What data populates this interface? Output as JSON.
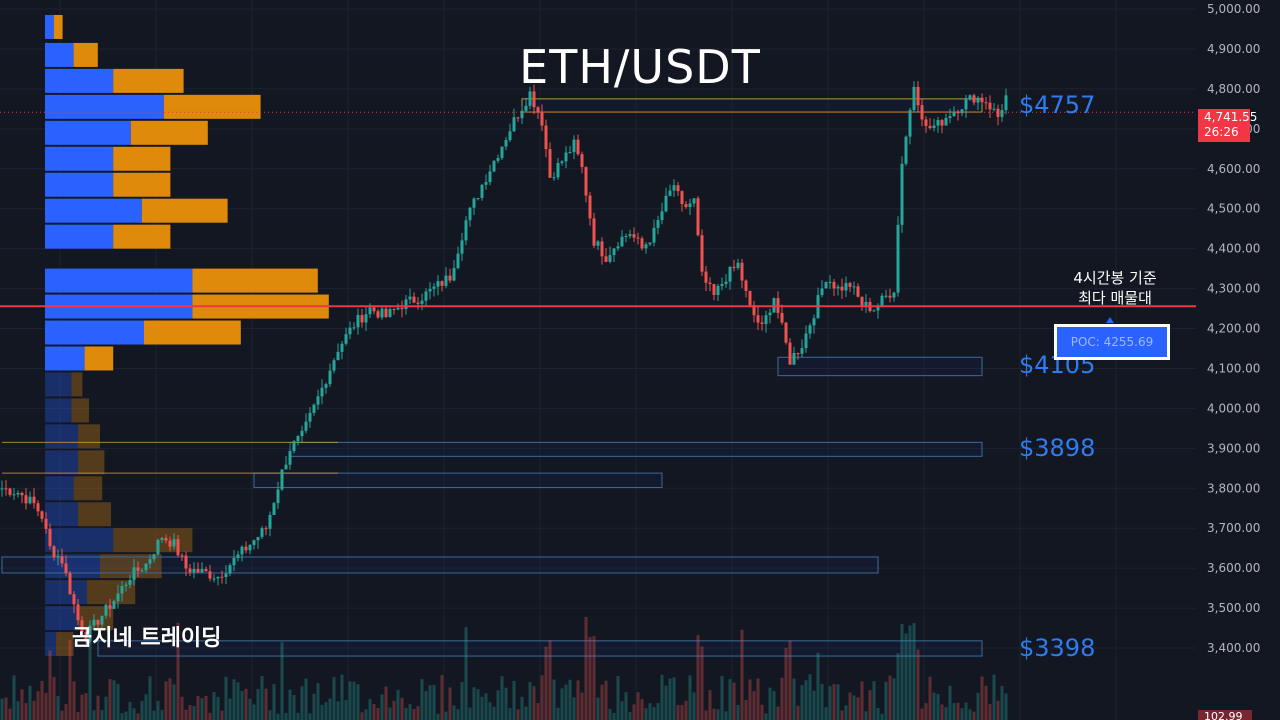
{
  "title": "ETH/USDT",
  "watermark": "곰지네 트레이딩",
  "colors": {
    "background": "#131722",
    "up": "#26a69a",
    "down": "#ef5350",
    "profile_blue": "#2962ff",
    "profile_orange": "#e08a0b",
    "poc_line": "#f23645",
    "level_label": "#2f7bf0"
  },
  "annotations": {
    "poc_caption_line1": "4시간봉 기준",
    "poc_caption_line2": "최다 매물대",
    "poc_label": "POC: 4255.69"
  },
  "price_tag": {
    "price": "4,741.55",
    "countdown": "26:26"
  },
  "volume_tag": "102.99 K",
  "chart_data": {
    "type": "candlestick",
    "title": "ETH/USDT",
    "y_axis": {
      "min": 3320,
      "max": 5000,
      "ticks": [
        5000,
        4900,
        4800,
        4700,
        4600,
        4500,
        4400,
        4300,
        4200,
        4100,
        4000,
        3900,
        3800,
        3700,
        3600,
        3500,
        3400
      ],
      "tick_labels": [
        "5,000.00",
        "4,900.00",
        "4,800.00",
        "4,700.00",
        "4,600.00",
        "4,500.00",
        "4,400.00",
        "4,300.00",
        "4,200.00",
        "4,100.00",
        "4,000.00",
        "3,900.00",
        "3,800.00",
        "3,700.00",
        "3,600.00",
        "3,500.00",
        "3,400.00"
      ],
      "side": "right"
    },
    "current_price": 4741.55,
    "poc": 4255.69,
    "key_levels": [
      {
        "label": "$4757",
        "price": 4757
      },
      {
        "label": "$4105",
        "price": 4105
      },
      {
        "label": "$3898",
        "price": 3898
      },
      {
        "label": "$3398",
        "price": 3398
      }
    ],
    "path": [
      [
        0,
        3800
      ],
      [
        4,
        3790
      ],
      [
        8,
        3760
      ],
      [
        10,
        3730
      ],
      [
        12,
        3650
      ],
      [
        15,
        3620
      ],
      [
        19,
        3470
      ],
      [
        21,
        3430
      ],
      [
        24,
        3470
      ],
      [
        28,
        3520
      ],
      [
        32,
        3580
      ],
      [
        36,
        3610
      ],
      [
        40,
        3680
      ],
      [
        43,
        3660
      ],
      [
        46,
        3600
      ],
      [
        50,
        3590
      ],
      [
        54,
        3580
      ],
      [
        58,
        3620
      ],
      [
        62,
        3660
      ],
      [
        66,
        3700
      ],
      [
        70,
        3840
      ],
      [
        72,
        3900
      ],
      [
        75,
        3930
      ],
      [
        80,
        4050
      ],
      [
        84,
        4150
      ],
      [
        88,
        4210
      ],
      [
        92,
        4250
      ],
      [
        96,
        4230
      ],
      [
        100,
        4260
      ],
      [
        105,
        4280
      ],
      [
        108,
        4300
      ],
      [
        112,
        4330
      ],
      [
        116,
        4470
      ],
      [
        120,
        4560
      ],
      [
        124,
        4640
      ],
      [
        128,
        4720
      ],
      [
        132,
        4790
      ],
      [
        135,
        4720
      ],
      [
        137,
        4580
      ],
      [
        140,
        4620
      ],
      [
        143,
        4660
      ],
      [
        145,
        4600
      ],
      [
        148,
        4420
      ],
      [
        151,
        4380
      ],
      [
        154,
        4420
      ],
      [
        157,
        4440
      ],
      [
        160,
        4400
      ],
      [
        163,
        4440
      ],
      [
        166,
        4520
      ],
      [
        168,
        4560
      ],
      [
        170,
        4500
      ],
      [
        173,
        4520
      ],
      [
        175,
        4330
      ],
      [
        178,
        4280
      ],
      [
        181,
        4330
      ],
      [
        184,
        4360
      ],
      [
        187,
        4250
      ],
      [
        190,
        4200
      ],
      [
        193,
        4280
      ],
      [
        195,
        4200
      ],
      [
        197,
        4120
      ],
      [
        200,
        4160
      ],
      [
        203,
        4240
      ],
      [
        206,
        4330
      ],
      [
        209,
        4300
      ],
      [
        212,
        4310
      ],
      [
        215,
        4260
      ],
      [
        218,
        4250
      ],
      [
        221,
        4280
      ],
      [
        223,
        4300
      ],
      [
        225,
        4620
      ],
      [
        228,
        4810
      ],
      [
        231,
        4700
      ],
      [
        234,
        4710
      ],
      [
        237,
        4740
      ],
      [
        240,
        4760
      ],
      [
        243,
        4780
      ],
      [
        246,
        4770
      ],
      [
        249,
        4730
      ],
      [
        251,
        4780
      ]
    ],
    "profile": [
      {
        "price": 4955,
        "up": 4,
        "down": 4,
        "faded": false
      },
      {
        "price": 4885,
        "up": 13,
        "down": 11,
        "faded": false
      },
      {
        "price": 4820,
        "up": 31,
        "down": 32,
        "faded": false
      },
      {
        "price": 4755,
        "up": 54,
        "down": 44,
        "faded": false
      },
      {
        "price": 4690,
        "up": 39,
        "down": 35,
        "faded": false
      },
      {
        "price": 4625,
        "up": 31,
        "down": 26,
        "faded": false
      },
      {
        "price": 4560,
        "up": 31,
        "down": 26,
        "faded": false
      },
      {
        "price": 4495,
        "up": 44,
        "down": 39,
        "faded": false
      },
      {
        "price": 4430,
        "up": 31,
        "down": 26,
        "faded": false
      },
      {
        "price": 4320,
        "up": 67,
        "down": 57,
        "faded": false
      },
      {
        "price": 4255,
        "up": 67,
        "down": 62,
        "faded": false
      },
      {
        "price": 4190,
        "up": 45,
        "down": 44,
        "faded": false
      },
      {
        "price": 4125,
        "up": 18,
        "down": 13,
        "faded": false
      },
      {
        "price": 4060,
        "up": 12,
        "down": 5,
        "faded": true
      },
      {
        "price": 3995,
        "up": 12,
        "down": 8,
        "faded": true
      },
      {
        "price": 3930,
        "up": 15,
        "down": 10,
        "faded": true
      },
      {
        "price": 3865,
        "up": 15,
        "down": 12,
        "faded": true
      },
      {
        "price": 3800,
        "up": 13,
        "down": 13,
        "faded": true
      },
      {
        "price": 3735,
        "up": 15,
        "down": 15,
        "faded": true
      },
      {
        "price": 3670,
        "up": 31,
        "down": 36,
        "faded": true
      },
      {
        "price": 3605,
        "up": 25,
        "down": 28,
        "faded": true
      },
      {
        "price": 3540,
        "up": 19,
        "down": 22,
        "faded": true
      },
      {
        "price": 3475,
        "up": 15,
        "down": 16,
        "faded": true
      },
      {
        "price": 3410,
        "up": 5,
        "down": 8,
        "faded": true
      }
    ],
    "zones": [
      {
        "price_top": 4775,
        "price_bottom": 4742,
        "start": 130,
        "end": 245,
        "style": "yellow"
      },
      {
        "price_top": 4128,
        "price_bottom": 4082,
        "start": 194,
        "end": 245,
        "style": "blue"
      },
      {
        "price_top": 3915,
        "price_bottom": 3880,
        "start": 72,
        "end": 245,
        "style": "blue"
      },
      {
        "price_top": 3838,
        "price_bottom": 3802,
        "start": 63,
        "end": 165,
        "style": "blue"
      },
      {
        "price_top": 3628,
        "price_bottom": 3588,
        "start": 0,
        "end": 219,
        "style": "blue"
      },
      {
        "price_top": 3418,
        "price_bottom": 3380,
        "start": 24,
        "end": 245,
        "style": "blue"
      },
      {
        "price_top": 3915,
        "price_bottom": 3915,
        "start": 0,
        "end": 84,
        "style": "yellow-line"
      },
      {
        "price_top": 3838,
        "price_bottom": 3838,
        "start": 0,
        "end": 84,
        "style": "yellow-line"
      }
    ]
  }
}
